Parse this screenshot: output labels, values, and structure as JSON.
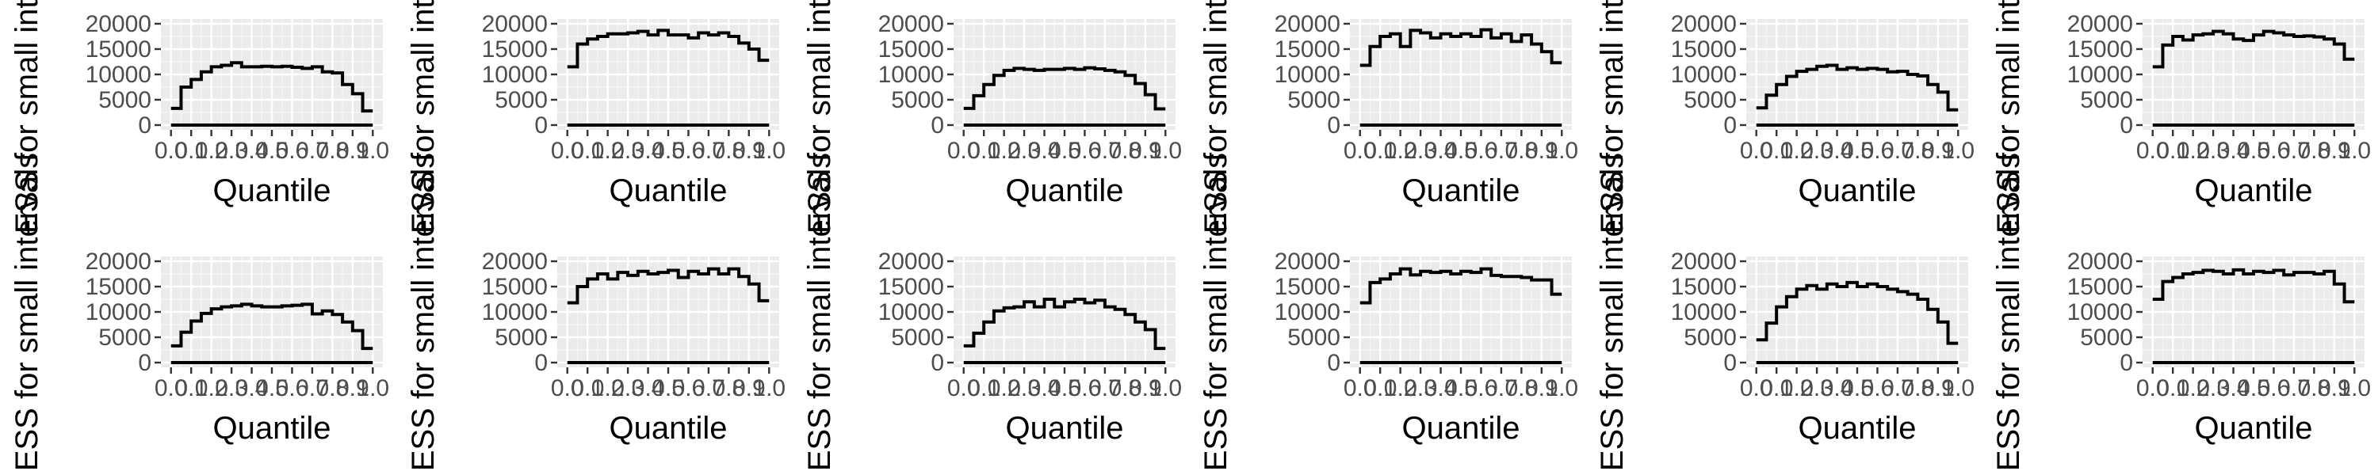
{
  "figure": {
    "rows": 2,
    "cols": 6
  },
  "chart_data": [
    {
      "type": "line",
      "xlabel": "Quantile",
      "ylabel": "ESS for small intervals",
      "ylim": [
        0,
        20000
      ],
      "yticks": [
        0,
        5000,
        10000,
        15000,
        20000
      ],
      "xticks": [
        0,
        0.1,
        0.2,
        0.3,
        0.4,
        0.5,
        0.6,
        0.7,
        0.8,
        0.9,
        1.0
      ],
      "xtick_labels": [
        "0.0",
        "0.1",
        "0.2",
        "0.3",
        "0.4",
        "0.5",
        "0.6",
        "0.7",
        "0.8",
        "0.9",
        "1.0"
      ],
      "series": [
        {
          "values": [
            3300,
            7500,
            9000,
            10500,
            11500,
            11800,
            12300,
            11500,
            11500,
            11600,
            11500,
            11600,
            11400,
            11200,
            11500,
            10500,
            10300,
            8000,
            6200,
            2800
          ]
        },
        {
          "values": [
            0,
            0,
            0,
            0,
            0,
            0,
            0,
            0,
            0,
            0,
            0,
            0,
            0,
            0,
            0,
            0,
            0,
            0,
            0,
            0
          ]
        }
      ]
    },
    {
      "type": "line",
      "xlabel": "Quantile",
      "ylabel": "ESS for small intervals",
      "ylim": [
        0,
        20000
      ],
      "yticks": [
        0,
        5000,
        10000,
        15000,
        20000
      ],
      "xticks": [
        0,
        0.1,
        0.2,
        0.3,
        0.4,
        0.5,
        0.6,
        0.7,
        0.8,
        0.9,
        1.0
      ],
      "xtick_labels": [
        "0.0",
        "0.1",
        "0.2",
        "0.3",
        "0.4",
        "0.5",
        "0.6",
        "0.7",
        "0.8",
        "0.9",
        "1.0"
      ],
      "series": [
        {
          "values": [
            11500,
            16000,
            17000,
            17500,
            18000,
            18000,
            18200,
            18500,
            17800,
            18700,
            17800,
            17800,
            17200,
            18200,
            17800,
            18200,
            17500,
            16200,
            15000,
            12800
          ]
        },
        {
          "values": [
            0,
            0,
            0,
            0,
            0,
            0,
            0,
            0,
            0,
            0,
            0,
            0,
            0,
            0,
            0,
            0,
            0,
            0,
            0,
            0
          ]
        }
      ]
    },
    {
      "type": "line",
      "xlabel": "Quantile",
      "ylabel": "ESS for small intervals",
      "ylim": [
        0,
        20000
      ],
      "yticks": [
        0,
        5000,
        10000,
        15000,
        20000
      ],
      "xticks": [
        0,
        0.1,
        0.2,
        0.3,
        0.4,
        0.5,
        0.6,
        0.7,
        0.8,
        0.9,
        1.0
      ],
      "xtick_labels": [
        "0.0",
        "0.1",
        "0.2",
        "0.3",
        "0.4",
        "0.5",
        "0.6",
        "0.7",
        "0.8",
        "0.9",
        "1.0"
      ],
      "series": [
        {
          "values": [
            3300,
            5800,
            8000,
            9800,
            10800,
            11200,
            11000,
            10800,
            11000,
            11000,
            11200,
            11000,
            11300,
            11100,
            10800,
            10500,
            9800,
            8200,
            6000,
            3200
          ]
        },
        {
          "values": [
            0,
            0,
            0,
            0,
            0,
            0,
            0,
            0,
            0,
            0,
            0,
            0,
            0,
            0,
            0,
            0,
            0,
            0,
            0,
            0
          ]
        }
      ]
    },
    {
      "type": "line",
      "xlabel": "Quantile",
      "ylabel": "ESS for small intervals",
      "ylim": [
        0,
        20000
      ],
      "yticks": [
        0,
        5000,
        10000,
        15000,
        20000
      ],
      "xticks": [
        0,
        0.1,
        0.2,
        0.3,
        0.4,
        0.5,
        0.6,
        0.7,
        0.8,
        0.9,
        1.0
      ],
      "xtick_labels": [
        "0.0",
        "0.1",
        "0.2",
        "0.3",
        "0.4",
        "0.5",
        "0.6",
        "0.7",
        "0.8",
        "0.9",
        "1.0"
      ],
      "series": [
        {
          "values": [
            11800,
            15500,
            17500,
            18000,
            15500,
            18700,
            18200,
            17200,
            18000,
            17500,
            18000,
            17500,
            18800,
            17200,
            18000,
            16500,
            17800,
            16000,
            14500,
            12300
          ]
        },
        {
          "values": [
            0,
            0,
            0,
            0,
            0,
            0,
            0,
            0,
            0,
            0,
            0,
            0,
            0,
            0,
            0,
            0,
            0,
            0,
            0,
            0
          ]
        }
      ]
    },
    {
      "type": "line",
      "xlabel": "Quantile",
      "ylabel": "ESS for small intervals",
      "ylim": [
        0,
        20000
      ],
      "yticks": [
        0,
        5000,
        10000,
        15000,
        20000
      ],
      "xticks": [
        0,
        0.1,
        0.2,
        0.3,
        0.4,
        0.5,
        0.6,
        0.7,
        0.8,
        0.9,
        1.0
      ],
      "xtick_labels": [
        "0.0",
        "0.1",
        "0.2",
        "0.3",
        "0.4",
        "0.5",
        "0.6",
        "0.7",
        "0.8",
        "0.9",
        "1.0"
      ],
      "series": [
        {
          "values": [
            3400,
            5900,
            8000,
            9600,
            10600,
            11000,
            11600,
            11800,
            11000,
            11300,
            11000,
            11200,
            11000,
            10500,
            10600,
            10000,
            9700,
            8000,
            6500,
            3000
          ]
        },
        {
          "values": [
            0,
            0,
            0,
            0,
            0,
            0,
            0,
            0,
            0,
            0,
            0,
            0,
            0,
            0,
            0,
            0,
            0,
            0,
            0,
            0
          ]
        }
      ]
    },
    {
      "type": "line",
      "xlabel": "Quantile",
      "ylabel": "ESS for small intervals",
      "ylim": [
        0,
        20000
      ],
      "yticks": [
        0,
        5000,
        10000,
        15000,
        20000
      ],
      "xticks": [
        0,
        0.1,
        0.2,
        0.3,
        0.4,
        0.5,
        0.6,
        0.7,
        0.8,
        0.9,
        1.0
      ],
      "xtick_labels": [
        "0.0",
        "0.1",
        "0.2",
        "0.3",
        "0.4",
        "0.5",
        "0.6",
        "0.7",
        "0.8",
        "0.9",
        "1.0"
      ],
      "series": [
        {
          "values": [
            11500,
            15800,
            17500,
            16800,
            17800,
            18000,
            18500,
            18000,
            17000,
            16700,
            17800,
            18500,
            18200,
            17800,
            17500,
            17600,
            17400,
            17000,
            16000,
            13000
          ]
        },
        {
          "values": [
            0,
            0,
            0,
            0,
            0,
            0,
            0,
            0,
            0,
            0,
            0,
            0,
            0,
            0,
            0,
            0,
            0,
            0,
            0,
            0
          ]
        }
      ]
    },
    {
      "type": "line",
      "xlabel": "Quantile",
      "ylabel": "ESS for small intervals",
      "ylim": [
        0,
        20000
      ],
      "yticks": [
        0,
        5000,
        10000,
        15000,
        20000
      ],
      "xticks": [
        0,
        0.1,
        0.2,
        0.3,
        0.4,
        0.5,
        0.6,
        0.7,
        0.8,
        0.9,
        1.0
      ],
      "xtick_labels": [
        "0.0",
        "0.1",
        "0.2",
        "0.3",
        "0.4",
        "0.5",
        "0.6",
        "0.7",
        "0.8",
        "0.9",
        "1.0"
      ],
      "series": [
        {
          "values": [
            3300,
            6000,
            8200,
            9700,
            10600,
            11000,
            11200,
            11500,
            11200,
            11000,
            11000,
            11200,
            11300,
            11500,
            9600,
            10200,
            9500,
            8000,
            6300,
            2800
          ]
        },
        {
          "values": [
            0,
            0,
            0,
            0,
            0,
            0,
            0,
            0,
            0,
            0,
            0,
            0,
            0,
            0,
            0,
            0,
            0,
            0,
            0,
            0
          ]
        }
      ]
    },
    {
      "type": "line",
      "xlabel": "Quantile",
      "ylabel": "ESS for small intervals",
      "ylim": [
        0,
        20000
      ],
      "yticks": [
        0,
        5000,
        10000,
        15000,
        20000
      ],
      "xticks": [
        0,
        0.1,
        0.2,
        0.3,
        0.4,
        0.5,
        0.6,
        0.7,
        0.8,
        0.9,
        1.0
      ],
      "xtick_labels": [
        "0.0",
        "0.1",
        "0.2",
        "0.3",
        "0.4",
        "0.5",
        "0.6",
        "0.7",
        "0.8",
        "0.9",
        "1.0"
      ],
      "series": [
        {
          "values": [
            11800,
            15000,
            16500,
            17500,
            16500,
            17800,
            17200,
            18000,
            17500,
            17800,
            18200,
            16800,
            18000,
            17500,
            18500,
            17500,
            18500,
            17000,
            15500,
            12200
          ]
        },
        {
          "values": [
            0,
            0,
            0,
            0,
            0,
            0,
            0,
            0,
            0,
            0,
            0,
            0,
            0,
            0,
            0,
            0,
            0,
            0,
            0,
            0
          ]
        }
      ]
    },
    {
      "type": "line",
      "xlabel": "Quantile",
      "ylabel": "ESS for small intervals",
      "ylim": [
        0,
        20000
      ],
      "yticks": [
        0,
        5000,
        10000,
        15000,
        20000
      ],
      "xticks": [
        0,
        0.1,
        0.2,
        0.3,
        0.4,
        0.5,
        0.6,
        0.7,
        0.8,
        0.9,
        1.0
      ],
      "xtick_labels": [
        "0.0",
        "0.1",
        "0.2",
        "0.3",
        "0.4",
        "0.5",
        "0.6",
        "0.7",
        "0.8",
        "0.9",
        "1.0"
      ],
      "series": [
        {
          "values": [
            3300,
            5800,
            8000,
            10200,
            10800,
            11000,
            12000,
            11000,
            12500,
            11000,
            12000,
            12500,
            11800,
            12300,
            11000,
            10500,
            9500,
            8000,
            6500,
            2800
          ]
        },
        {
          "values": [
            0,
            0,
            0,
            0,
            0,
            0,
            0,
            0,
            0,
            0,
            0,
            0,
            0,
            0,
            0,
            0,
            0,
            0,
            0,
            0
          ]
        }
      ]
    },
    {
      "type": "line",
      "xlabel": "Quantile",
      "ylabel": "ESS for small intervals",
      "ylim": [
        0,
        20000
      ],
      "yticks": [
        0,
        5000,
        10000,
        15000,
        20000
      ],
      "xticks": [
        0,
        0.1,
        0.2,
        0.3,
        0.4,
        0.5,
        0.6,
        0.7,
        0.8,
        0.9,
        1.0
      ],
      "xtick_labels": [
        "0.0",
        "0.1",
        "0.2",
        "0.3",
        "0.4",
        "0.5",
        "0.6",
        "0.7",
        "0.8",
        "0.9",
        "1.0"
      ],
      "series": [
        {
          "values": [
            11800,
            15800,
            16500,
            17500,
            18500,
            17300,
            18000,
            17800,
            18000,
            17500,
            18000,
            17800,
            18500,
            17200,
            17000,
            17000,
            16800,
            16300,
            16300,
            13500
          ]
        },
        {
          "values": [
            0,
            0,
            0,
            0,
            0,
            0,
            0,
            0,
            0,
            0,
            0,
            0,
            0,
            0,
            0,
            0,
            0,
            0,
            0,
            0
          ]
        }
      ]
    },
    {
      "type": "line",
      "xlabel": "Quantile",
      "ylabel": "ESS for small intervals",
      "ylim": [
        0,
        20000
      ],
      "yticks": [
        0,
        5000,
        10000,
        15000,
        20000
      ],
      "xticks": [
        0,
        0.1,
        0.2,
        0.3,
        0.4,
        0.5,
        0.6,
        0.7,
        0.8,
        0.9,
        1.0
      ],
      "xtick_labels": [
        "0.0",
        "0.1",
        "0.2",
        "0.3",
        "0.4",
        "0.5",
        "0.6",
        "0.7",
        "0.8",
        "0.9",
        "1.0"
      ],
      "series": [
        {
          "values": [
            4500,
            7800,
            11000,
            13000,
            14500,
            15200,
            14500,
            15500,
            15000,
            15800,
            15000,
            15500,
            15000,
            14500,
            14000,
            13500,
            12500,
            10500,
            8000,
            3800
          ]
        },
        {
          "values": [
            0,
            0,
            0,
            0,
            0,
            0,
            0,
            0,
            0,
            0,
            0,
            0,
            0,
            0,
            0,
            0,
            0,
            0,
            0,
            0
          ]
        }
      ]
    },
    {
      "type": "line",
      "xlabel": "Quantile",
      "ylabel": "ESS for small intervals",
      "ylim": [
        0,
        20000
      ],
      "yticks": [
        0,
        5000,
        10000,
        15000,
        20000
      ],
      "xticks": [
        0,
        0.1,
        0.2,
        0.3,
        0.4,
        0.5,
        0.6,
        0.7,
        0.8,
        0.9,
        1.0
      ],
      "xtick_labels": [
        "0.0",
        "0.1",
        "0.2",
        "0.3",
        "0.4",
        "0.5",
        "0.6",
        "0.7",
        "0.8",
        "0.9",
        "1.0"
      ],
      "series": [
        {
          "values": [
            12500,
            16000,
            16800,
            17500,
            17800,
            18200,
            18000,
            17500,
            18300,
            17500,
            18000,
            17800,
            18200,
            17300,
            17800,
            17800,
            17500,
            18000,
            15500,
            12000
          ]
        },
        {
          "values": [
            0,
            0,
            0,
            0,
            0,
            0,
            0,
            0,
            0,
            0,
            0,
            0,
            0,
            0,
            0,
            0,
            0,
            0,
            0,
            0
          ]
        }
      ]
    }
  ]
}
